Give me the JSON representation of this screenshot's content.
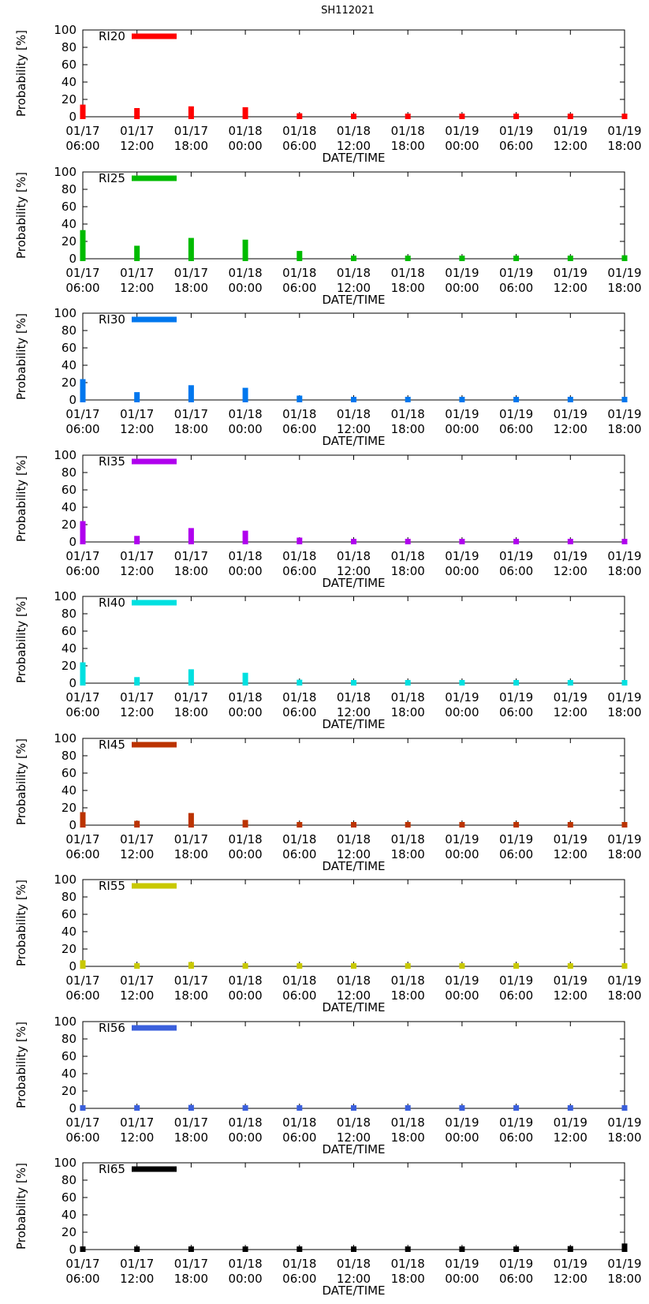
{
  "chart_data": {
    "type": "bar",
    "title": "SH112021",
    "xlabel": "DATE/TIME",
    "ylabel": "Probability [%]",
    "ylim": [
      0,
      100
    ],
    "yticks": [
      "0",
      "20",
      "40",
      "60",
      "80",
      "100"
    ],
    "categories": [
      {
        "date": "01/17",
        "time": "06:00"
      },
      {
        "date": "01/17",
        "time": "12:00"
      },
      {
        "date": "01/17",
        "time": "18:00"
      },
      {
        "date": "01/18",
        "time": "00:00"
      },
      {
        "date": "01/18",
        "time": "06:00"
      },
      {
        "date": "01/18",
        "time": "12:00"
      },
      {
        "date": "01/18",
        "time": "18:00"
      },
      {
        "date": "01/19",
        "time": "00:00"
      },
      {
        "date": "01/19",
        "time": "06:00"
      },
      {
        "date": "01/19",
        "time": "12:00"
      },
      {
        "date": "01/19",
        "time": "18:00"
      }
    ],
    "series": [
      {
        "name": "RI20",
        "color": "#ff0000",
        "values": [
          14,
          10,
          12,
          11,
          4,
          1,
          1,
          1,
          1,
          1,
          1
        ]
      },
      {
        "name": "RI25",
        "color": "#00bb00",
        "values": [
          33,
          15,
          24,
          22,
          9,
          3,
          3,
          3,
          3,
          3,
          4
        ]
      },
      {
        "name": "RI30",
        "color": "#0077ee",
        "values": [
          24,
          9,
          17,
          14,
          5,
          2,
          2,
          2,
          2,
          2,
          2
        ]
      },
      {
        "name": "RI35",
        "color": "#b000ee",
        "values": [
          24,
          7,
          16,
          13,
          5,
          2,
          2,
          2,
          2,
          2,
          2
        ]
      },
      {
        "name": "RI40",
        "color": "#00e0e0",
        "values": [
          24,
          7,
          16,
          12,
          4,
          2,
          2,
          2,
          2,
          2,
          2
        ]
      },
      {
        "name": "RI45",
        "color": "#bb3300",
        "values": [
          15,
          5,
          14,
          6,
          3,
          2,
          2,
          2,
          2,
          3,
          3
        ]
      },
      {
        "name": "RI55",
        "color": "#c8c800",
        "values": [
          7,
          1,
          5,
          1,
          0.5,
          0.5,
          0.5,
          0.5,
          0.5,
          0.5,
          0.5
        ]
      },
      {
        "name": "RI56",
        "color": "#3a5fdc",
        "values": [
          1,
          1,
          4,
          1,
          1,
          2,
          1,
          1,
          2,
          2,
          2
        ]
      },
      {
        "name": "RI65",
        "color": "#000000",
        "values": [
          1,
          1,
          1,
          1,
          1,
          3,
          2,
          1,
          3,
          4,
          7
        ]
      }
    ]
  }
}
